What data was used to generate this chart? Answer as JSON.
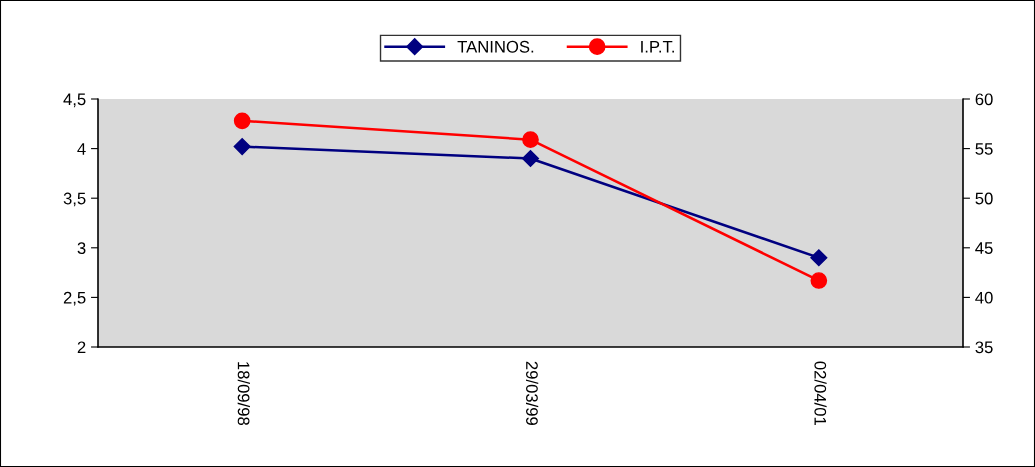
{
  "chart_data": {
    "type": "line",
    "categories": [
      "18/09/98",
      "29/03/99",
      "02/04/01"
    ],
    "series": [
      {
        "name": "TANINOS.",
        "color": "#000080",
        "marker": "diamond",
        "values": [
          4.02,
          3.9,
          2.9
        ]
      },
      {
        "name": "I.P.T.",
        "color": "#ff0000",
        "marker": "circle",
        "axis": "y2",
        "values": [
          57.8,
          55.9,
          41.7
        ]
      }
    ],
    "ylim": [
      2,
      4.5
    ],
    "yticks": [
      2,
      {
        "value": 2.5,
        "label": "2,5"
      },
      3,
      {
        "value": 3.5,
        "label": "3,5"
      },
      4,
      {
        "value": 4.5,
        "label": "4,5"
      }
    ],
    "y2lim": [
      35,
      60
    ],
    "y2ticks": [
      35,
      40,
      45,
      50,
      55,
      60
    ],
    "legend": "top",
    "grid": false
  }
}
